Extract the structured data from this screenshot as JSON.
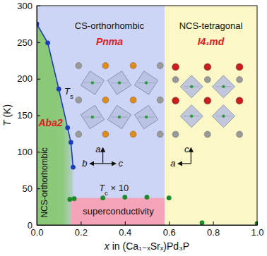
{
  "chart_data": {
    "type": "scatter",
    "xlabel": "x in (Ca₁₋ₓSrₓ)Pd₃P",
    "ylabel": "T (K)",
    "xlim": [
      0,
      1
    ],
    "xticks": [
      {
        "value": 0,
        "label": "0.0"
      },
      {
        "value": 0.2,
        "label": "0.2"
      },
      {
        "value": 0.4,
        "label": "0.4"
      },
      {
        "value": 0.6,
        "label": "0.6"
      },
      {
        "value": 0.8,
        "label": "0.8"
      },
      {
        "value": 1,
        "label": "1.0"
      }
    ],
    "ylim": [
      0,
      300
    ],
    "yticks": [
      0,
      50,
      100,
      150,
      200,
      250,
      300
    ],
    "series": [
      {
        "name": "Ts",
        "color": "#1c3cc0",
        "marker": "circle",
        "line_style": "solid",
        "x": [
          0,
          0.05,
          0.1,
          0.14,
          0.155,
          0.165
        ],
        "values": [
          275,
          249,
          186,
          133,
          113,
          79
        ]
      },
      {
        "name": "Tc × 10",
        "color": "#1d8a2c",
        "marker": "circle",
        "line_style": "none",
        "x": [
          0.15,
          0.17,
          0.3,
          0.4,
          0.5,
          0.6,
          0.75,
          1.0
        ],
        "values": [
          35,
          36,
          37,
          38,
          38,
          37,
          3,
          2
        ]
      }
    ],
    "regions": [
      {
        "name": "CS-orthorhombic",
        "space_group": "Pnma",
        "color": "#cdd5f7",
        "xlim": [
          0,
          0.58
        ],
        "ylim": [
          0,
          300
        ]
      },
      {
        "name": "NCS-tetragonal",
        "space_group": "I4₁md",
        "color": "#fbf7c6",
        "xlim": [
          0.58,
          1
        ],
        "ylim": [
          0,
          300
        ]
      },
      {
        "name": "NCS-orthorhombic",
        "space_group": "Aba2",
        "color": "#89c975"
      },
      {
        "name": "superconductivity",
        "color": "#f5a3b8",
        "xlim": [
          0.155,
          0.58
        ],
        "ylim": [
          0,
          37
        ]
      }
    ],
    "insets": [
      {
        "axes": [
          "a",
          "b",
          "c"
        ]
      },
      {
        "axes": [
          "c",
          "a"
        ]
      }
    ]
  }
}
